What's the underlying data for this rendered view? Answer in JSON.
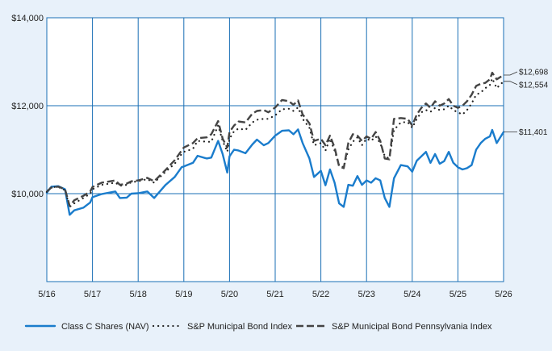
{
  "colors": {
    "background": "#e8f1fa",
    "plot_background": "#ffffff",
    "grid": "#1a6fb5",
    "class_c": "#1a7ccc",
    "sp_muni": "#222222",
    "sp_pa": "#444444"
  },
  "chart_data": {
    "type": "line",
    "title": "",
    "xlabel": "",
    "ylabel": "",
    "ylim": [
      8000,
      14000
    ],
    "yticks": [
      {
        "value": 10000,
        "label": "$10,000"
      },
      {
        "value": 12000,
        "label": "$12,000"
      },
      {
        "value": 14000,
        "label": "$14,000"
      }
    ],
    "xlim": [
      2016.0,
      2026.0
    ],
    "xticks": [
      {
        "value": 2016,
        "label": "5/16"
      },
      {
        "value": 2017,
        "label": "5/17"
      },
      {
        "value": 2018,
        "label": "5/18"
      },
      {
        "value": 2019,
        "label": "5/19"
      },
      {
        "value": 2020,
        "label": "5/20"
      },
      {
        "value": 2021,
        "label": "5/21"
      },
      {
        "value": 2022,
        "label": "5/22"
      },
      {
        "value": 2023,
        "label": "5/23"
      },
      {
        "value": 2024,
        "label": "5/24"
      },
      {
        "value": 2025,
        "label": "5/25"
      },
      {
        "value": 2026,
        "label": "5/26"
      }
    ],
    "grid": true,
    "legend_position": "bottom",
    "series": [
      {
        "name": "Class C Shares (NAV)",
        "style": "solid",
        "end_label": "$11,401",
        "x": [
          2016.0,
          2016.1,
          2016.25,
          2016.4,
          2016.5,
          2016.6,
          2016.8,
          2016.95,
          2017.0,
          2017.2,
          2017.5,
          2017.6,
          2017.75,
          2017.85,
          2018.0,
          2018.2,
          2018.35,
          2018.6,
          2018.8,
          2018.95,
          2019.0,
          2019.2,
          2019.3,
          2019.5,
          2019.6,
          2019.75,
          2019.85,
          2019.95,
          2020.0,
          2020.1,
          2020.2,
          2020.35,
          2020.5,
          2020.6,
          2020.75,
          2020.85,
          2021.0,
          2021.15,
          2021.3,
          2021.4,
          2021.5,
          2021.6,
          2021.75,
          2021.85,
          2022.0,
          2022.1,
          2022.2,
          2022.3,
          2022.4,
          2022.5,
          2022.6,
          2022.7,
          2022.8,
          2022.9,
          2023.0,
          2023.1,
          2023.2,
          2023.3,
          2023.4,
          2023.5,
          2023.6,
          2023.75,
          2023.9,
          2024.0,
          2024.1,
          2024.2,
          2024.3,
          2024.4,
          2024.5,
          2024.6,
          2024.7,
          2024.8,
          2024.9,
          2025.0,
          2025.1,
          2025.2,
          2025.3,
          2025.4,
          2025.5,
          2025.6,
          2025.7,
          2025.75,
          2025.85,
          2026.0
        ],
        "values": [
          10020,
          10160,
          10170,
          10100,
          9520,
          9620,
          9680,
          9800,
          9920,
          9990,
          10050,
          9900,
          9910,
          10000,
          10010,
          10050,
          9900,
          10200,
          10380,
          10600,
          10620,
          10700,
          10860,
          10800,
          10820,
          11200,
          10900,
          10480,
          10850,
          11000,
          10980,
          10920,
          11120,
          11230,
          11100,
          11150,
          11320,
          11430,
          11440,
          11350,
          11460,
          11150,
          10800,
          10380,
          10520,
          10190,
          10550,
          10250,
          9780,
          9700,
          10200,
          10180,
          10400,
          10200,
          10300,
          10250,
          10350,
          10300,
          9900,
          9700,
          10350,
          10650,
          10620,
          10500,
          10750,
          10850,
          10950,
          10700,
          10900,
          10680,
          10740,
          10950,
          10700,
          10600,
          10550,
          10580,
          10650,
          11000,
          11150,
          11250,
          11300,
          11450,
          11150,
          11401
        ]
      },
      {
        "name": "S&P Municipal Bond Index",
        "style": "dotted",
        "end_label": "$12,554",
        "x": [
          2016.0,
          2016.1,
          2016.25,
          2016.4,
          2016.5,
          2016.6,
          2016.8,
          2016.95,
          2017.0,
          2017.2,
          2017.5,
          2017.6,
          2017.75,
          2017.85,
          2018.0,
          2018.2,
          2018.35,
          2018.6,
          2018.8,
          2018.95,
          2019.0,
          2019.2,
          2019.3,
          2019.5,
          2019.6,
          2019.75,
          2019.85,
          2019.95,
          2020.0,
          2020.1,
          2020.2,
          2020.35,
          2020.5,
          2020.6,
          2020.75,
          2020.85,
          2021.0,
          2021.15,
          2021.3,
          2021.4,
          2021.5,
          2021.6,
          2021.75,
          2021.85,
          2022.0,
          2022.1,
          2022.2,
          2022.3,
          2022.4,
          2022.5,
          2022.6,
          2022.7,
          2022.8,
          2022.9,
          2023.0,
          2023.1,
          2023.2,
          2023.3,
          2023.4,
          2023.5,
          2023.6,
          2023.75,
          2023.9,
          2024.0,
          2024.1,
          2024.2,
          2024.3,
          2024.4,
          2024.5,
          2024.6,
          2024.7,
          2024.8,
          2024.9,
          2025.0,
          2025.1,
          2025.2,
          2025.3,
          2025.4,
          2025.5,
          2025.6,
          2025.7,
          2025.75,
          2025.85,
          2026.0
        ],
        "values": [
          10040,
          10150,
          10150,
          10080,
          9700,
          9780,
          9900,
          10000,
          10100,
          10200,
          10250,
          10180,
          10200,
          10260,
          10280,
          10330,
          10250,
          10500,
          10680,
          10900,
          10950,
          11020,
          11200,
          11180,
          11180,
          11550,
          11200,
          10950,
          11250,
          11420,
          11480,
          11450,
          11620,
          11680,
          11700,
          11700,
          11780,
          11920,
          11930,
          11880,
          11960,
          11700,
          11500,
          11100,
          11150,
          10980,
          11250,
          10980,
          10640,
          10600,
          11000,
          11180,
          11280,
          11100,
          11250,
          11200,
          11300,
          11150,
          10850,
          10800,
          11450,
          11620,
          11630,
          11500,
          11700,
          11850,
          11900,
          11860,
          11950,
          11900,
          11920,
          12000,
          11900,
          11850,
          11800,
          11900,
          12050,
          12250,
          12300,
          12400,
          12470,
          12620,
          12400,
          12554
        ]
      },
      {
        "name": "S&P Municipal Bond Pennsylvania Index",
        "style": "dashed",
        "end_label": "$12,698",
        "x": [
          2016.0,
          2016.1,
          2016.25,
          2016.4,
          2016.5,
          2016.6,
          2016.8,
          2016.95,
          2017.0,
          2017.2,
          2017.5,
          2017.6,
          2017.75,
          2017.85,
          2018.0,
          2018.2,
          2018.35,
          2018.6,
          2018.8,
          2018.95,
          2019.0,
          2019.2,
          2019.3,
          2019.5,
          2019.6,
          2019.75,
          2019.85,
          2019.95,
          2020.0,
          2020.1,
          2020.2,
          2020.35,
          2020.5,
          2020.6,
          2020.75,
          2020.85,
          2021.0,
          2021.15,
          2021.3,
          2021.4,
          2021.5,
          2021.6,
          2021.75,
          2021.85,
          2022.0,
          2022.1,
          2022.2,
          2022.3,
          2022.4,
          2022.5,
          2022.6,
          2022.7,
          2022.8,
          2022.9,
          2023.0,
          2023.1,
          2023.2,
          2023.3,
          2023.4,
          2023.5,
          2023.6,
          2023.75,
          2023.9,
          2024.0,
          2024.1,
          2024.2,
          2024.3,
          2024.4,
          2024.5,
          2024.6,
          2024.7,
          2024.8,
          2024.9,
          2025.0,
          2025.1,
          2025.2,
          2025.3,
          2025.4,
          2025.5,
          2025.6,
          2025.7,
          2025.75,
          2025.85,
          2026.0
        ],
        "values": [
          10050,
          10140,
          10160,
          10100,
          9720,
          9850,
          9950,
          10050,
          10150,
          10250,
          10300,
          10200,
          10230,
          10280,
          10300,
          10360,
          10280,
          10540,
          10760,
          10980,
          11050,
          11150,
          11260,
          11280,
          11350,
          11650,
          11250,
          11050,
          11400,
          11550,
          11640,
          11620,
          11820,
          11880,
          11900,
          11850,
          11960,
          12130,
          12100,
          12020,
          12120,
          11800,
          11600,
          11200,
          11250,
          11100,
          11320,
          11050,
          10620,
          10580,
          11150,
          11350,
          11320,
          11200,
          11300,
          11250,
          11400,
          11200,
          10800,
          10780,
          11700,
          11720,
          11700,
          11550,
          11800,
          11950,
          12050,
          11950,
          12100,
          12000,
          12050,
          12150,
          12000,
          11950,
          12000,
          12100,
          12250,
          12450,
          12500,
          12520,
          12600,
          12750,
          12600,
          12698
        ]
      }
    ]
  }
}
